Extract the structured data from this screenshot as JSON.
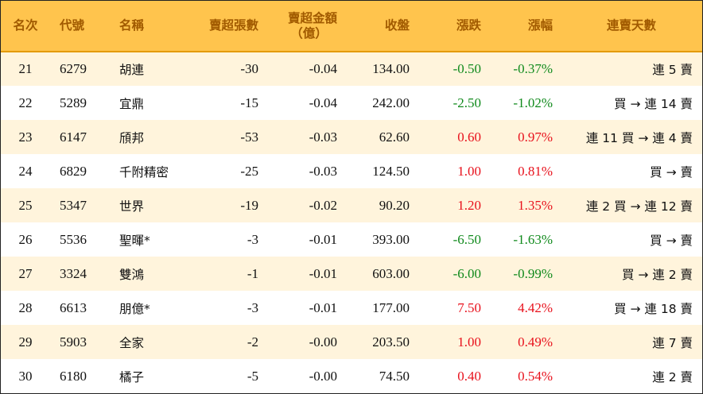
{
  "headers": {
    "rank": "名次",
    "code": "代號",
    "name": "名稱",
    "net_sell_lots": "賣超張數",
    "net_sell_amount_line1": "賣超金額",
    "net_sell_amount_line2": "（億）",
    "close": "收盤",
    "change": "漲跌",
    "change_pct": "漲幅",
    "streak": "連賣天數"
  },
  "colors": {
    "header_bg": "#ffc44d",
    "header_text": "#a15a00",
    "stripe": "#fff4dc",
    "up": "#e8111c",
    "down": "#108a1c"
  },
  "rows": [
    {
      "rank": "21",
      "code": "6279",
      "name": "胡連",
      "lots": "-30",
      "amount": "-0.04",
      "close": "134.00",
      "change": "-0.50",
      "pct": "-0.37%",
      "streak": "連 5 賣",
      "dir": "down"
    },
    {
      "rank": "22",
      "code": "5289",
      "name": "宜鼎",
      "lots": "-15",
      "amount": "-0.04",
      "close": "242.00",
      "change": "-2.50",
      "pct": "-1.02%",
      "streak": "買 → 連 14 賣",
      "dir": "down"
    },
    {
      "rank": "23",
      "code": "6147",
      "name": "頎邦",
      "lots": "-53",
      "amount": "-0.03",
      "close": "62.60",
      "change": "0.60",
      "pct": "0.97%",
      "streak": "連 11 買 → 連 4 賣",
      "dir": "up"
    },
    {
      "rank": "24",
      "code": "6829",
      "name": "千附精密",
      "lots": "-25",
      "amount": "-0.03",
      "close": "124.50",
      "change": "1.00",
      "pct": "0.81%",
      "streak": "買 → 賣",
      "dir": "up"
    },
    {
      "rank": "25",
      "code": "5347",
      "name": "世界",
      "lots": "-19",
      "amount": "-0.02",
      "close": "90.20",
      "change": "1.20",
      "pct": "1.35%",
      "streak": "連 2 買 → 連 12 賣",
      "dir": "up"
    },
    {
      "rank": "26",
      "code": "5536",
      "name": "聖暉*",
      "lots": "-3",
      "amount": "-0.01",
      "close": "393.00",
      "change": "-6.50",
      "pct": "-1.63%",
      "streak": "買 → 賣",
      "dir": "down"
    },
    {
      "rank": "27",
      "code": "3324",
      "name": "雙鴻",
      "lots": "-1",
      "amount": "-0.01",
      "close": "603.00",
      "change": "-6.00",
      "pct": "-0.99%",
      "streak": "買 → 連 2 賣",
      "dir": "down"
    },
    {
      "rank": "28",
      "code": "6613",
      "name": "朋億*",
      "lots": "-3",
      "amount": "-0.01",
      "close": "177.00",
      "change": "7.50",
      "pct": "4.42%",
      "streak": "買 → 連 18 賣",
      "dir": "up"
    },
    {
      "rank": "29",
      "code": "5903",
      "name": "全家",
      "lots": "-2",
      "amount": "-0.00",
      "close": "203.50",
      "change": "1.00",
      "pct": "0.49%",
      "streak": "連 7 賣",
      "dir": "up"
    },
    {
      "rank": "30",
      "code": "6180",
      "name": "橘子",
      "lots": "-5",
      "amount": "-0.00",
      "close": "74.50",
      "change": "0.40",
      "pct": "0.54%",
      "streak": "連 2 賣",
      "dir": "up"
    }
  ]
}
